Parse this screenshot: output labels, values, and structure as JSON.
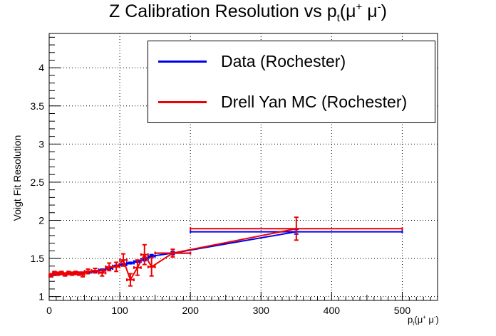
{
  "chart_data": {
    "type": "line",
    "title": "Z Calibration Resolution vs  pt(μ⁺ μ⁻)",
    "xlabel": "pt(μ⁺ μ⁻)",
    "ylabel": "Voigt Fit Resolution",
    "xlim": [
      0,
      550
    ],
    "ylim": [
      0.95,
      4.45
    ],
    "x_ticks": [
      0,
      100,
      200,
      300,
      400,
      500
    ],
    "y_ticks": [
      1,
      1.5,
      2,
      2.5,
      3,
      3.5,
      4
    ],
    "grid": true,
    "legend_position": "top-right",
    "series": [
      {
        "name": "Data (Rochester)",
        "color": "#0000ee",
        "points": [
          {
            "x": 2.5,
            "y": 1.27,
            "xerr": 2.5,
            "yerr": 0.01
          },
          {
            "x": 7.5,
            "y": 1.29,
            "xerr": 2.5,
            "yerr": 0.01
          },
          {
            "x": 12.5,
            "y": 1.3,
            "xerr": 2.5,
            "yerr": 0.01
          },
          {
            "x": 17.5,
            "y": 1.3,
            "xerr": 2.5,
            "yerr": 0.01
          },
          {
            "x": 22.5,
            "y": 1.3,
            "xerr": 2.5,
            "yerr": 0.01
          },
          {
            "x": 27.5,
            "y": 1.3,
            "xerr": 2.5,
            "yerr": 0.01
          },
          {
            "x": 32.5,
            "y": 1.3,
            "xerr": 2.5,
            "yerr": 0.01
          },
          {
            "x": 37.5,
            "y": 1.31,
            "xerr": 2.5,
            "yerr": 0.01
          },
          {
            "x": 42.5,
            "y": 1.31,
            "xerr": 2.5,
            "yerr": 0.01
          },
          {
            "x": 47.5,
            "y": 1.31,
            "xerr": 2.5,
            "yerr": 0.01
          },
          {
            "x": 55,
            "y": 1.32,
            "xerr": 5,
            "yerr": 0.01
          },
          {
            "x": 65,
            "y": 1.33,
            "xerr": 5,
            "yerr": 0.01
          },
          {
            "x": 75,
            "y": 1.35,
            "xerr": 5,
            "yerr": 0.01
          },
          {
            "x": 85,
            "y": 1.37,
            "xerr": 5,
            "yerr": 0.01
          },
          {
            "x": 95,
            "y": 1.4,
            "xerr": 5,
            "yerr": 0.01
          },
          {
            "x": 105,
            "y": 1.42,
            "xerr": 5,
            "yerr": 0.01
          },
          {
            "x": 115,
            "y": 1.44,
            "xerr": 5,
            "yerr": 0.01
          },
          {
            "x": 125,
            "y": 1.46,
            "xerr": 5,
            "yerr": 0.01
          },
          {
            "x": 135,
            "y": 1.49,
            "xerr": 5,
            "yerr": 0.02
          },
          {
            "x": 145,
            "y": 1.53,
            "xerr": 5,
            "yerr": 0.02
          },
          {
            "x": 175,
            "y": 1.57,
            "xerr": 25,
            "yerr": 0.02
          },
          {
            "x": 350,
            "y": 1.85,
            "xerr": 150,
            "yerr": 0.03
          }
        ]
      },
      {
        "name": "Drell Yan MC (Rochester)",
        "color": "#ee0000",
        "points": [
          {
            "x": 2.5,
            "y": 1.28,
            "xerr": 2.5,
            "yerr": 0.02
          },
          {
            "x": 7.5,
            "y": 1.31,
            "xerr": 2.5,
            "yerr": 0.02
          },
          {
            "x": 12.5,
            "y": 1.3,
            "xerr": 2.5,
            "yerr": 0.02
          },
          {
            "x": 17.5,
            "y": 1.31,
            "xerr": 2.5,
            "yerr": 0.02
          },
          {
            "x": 22.5,
            "y": 1.29,
            "xerr": 2.5,
            "yerr": 0.02
          },
          {
            "x": 27.5,
            "y": 1.31,
            "xerr": 2.5,
            "yerr": 0.02
          },
          {
            "x": 32.5,
            "y": 1.3,
            "xerr": 2.5,
            "yerr": 0.02
          },
          {
            "x": 37.5,
            "y": 1.31,
            "xerr": 2.5,
            "yerr": 0.02
          },
          {
            "x": 42.5,
            "y": 1.3,
            "xerr": 2.5,
            "yerr": 0.02
          },
          {
            "x": 47.5,
            "y": 1.29,
            "xerr": 2.5,
            "yerr": 0.03
          },
          {
            "x": 55,
            "y": 1.33,
            "xerr": 5,
            "yerr": 0.03
          },
          {
            "x": 65,
            "y": 1.34,
            "xerr": 5,
            "yerr": 0.03
          },
          {
            "x": 75,
            "y": 1.31,
            "xerr": 5,
            "yerr": 0.04
          },
          {
            "x": 85,
            "y": 1.39,
            "xerr": 5,
            "yerr": 0.05
          },
          {
            "x": 95,
            "y": 1.39,
            "xerr": 5,
            "yerr": 0.06
          },
          {
            "x": 105,
            "y": 1.48,
            "xerr": 5,
            "yerr": 0.08
          },
          {
            "x": 115,
            "y": 1.22,
            "xerr": 5,
            "yerr": 0.08
          },
          {
            "x": 125,
            "y": 1.38,
            "xerr": 5,
            "yerr": 0.1
          },
          {
            "x": 135,
            "y": 1.55,
            "xerr": 5,
            "yerr": 0.13
          },
          {
            "x": 145,
            "y": 1.39,
            "xerr": 5,
            "yerr": 0.12
          },
          {
            "x": 175,
            "y": 1.57,
            "xerr": 25,
            "yerr": 0.05
          },
          {
            "x": 350,
            "y": 1.89,
            "xerr": 150,
            "yerr": 0.15
          }
        ]
      }
    ]
  }
}
